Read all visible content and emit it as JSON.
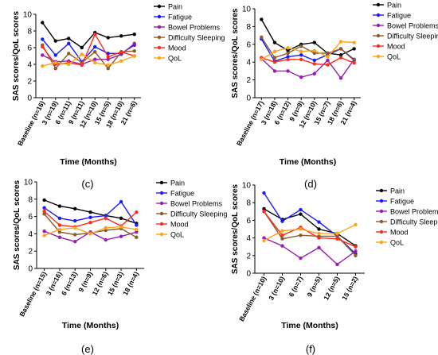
{
  "chart_data": [
    {
      "panel": "(c)",
      "type": "line",
      "xlabel": "Time (Months)",
      "ylabel": "SAS scores/QoL scores",
      "ylim": [
        0,
        10
      ],
      "yticks": [
        0,
        2,
        4,
        6,
        8,
        10
      ],
      "categories": [
        "Baseline (n=16)",
        "3 (n=19)",
        "6 (n=11)",
        "9 (n=11)",
        "12 (n=10)",
        "15 (n=5)",
        "18 (n=10)",
        "21 (n=6)"
      ],
      "legend": "top-right",
      "series": [
        {
          "name": "Pain",
          "color": "#000000",
          "values": [
            9.0,
            6.8,
            7.1,
            6.0,
            7.8,
            7.2,
            7.4,
            7.6
          ]
        },
        {
          "name": "Fatigue",
          "color": "#1a1aff",
          "values": [
            7.0,
            5.1,
            6.5,
            4.3,
            6.1,
            5.3,
            5.3,
            6.3
          ]
        },
        {
          "name": "Bowel Problems",
          "color": "#9b1bb1",
          "values": [
            5.1,
            4.3,
            4.4,
            4.0,
            4.6,
            4.6,
            5.2,
            6.5
          ]
        },
        {
          "name": "Difficulty Sleeping",
          "color": "#8b5a2b",
          "values": [
            6.3,
            3.5,
            5.3,
            4.2,
            5.5,
            3.5,
            5.5,
            5.6
          ]
        },
        {
          "name": "Mood",
          "color": "#ff2a1a",
          "values": [
            6.1,
            4.0,
            4.2,
            3.9,
            7.6,
            4.9,
            5.5,
            5.0
          ]
        },
        {
          "name": "QoL",
          "color": "#ffa31a",
          "values": [
            3.8,
            4.2,
            4.0,
            5.2,
            4.2,
            3.9,
            4.4,
            5.0
          ]
        }
      ]
    },
    {
      "panel": "(d)",
      "type": "line",
      "xlabel": "Time (Months)",
      "ylabel": "SAS scores/QoL scores",
      "ylim": [
        0,
        10
      ],
      "yticks": [
        0,
        2,
        4,
        6,
        8,
        10
      ],
      "categories": [
        "Baseline (n=17)",
        "3 (n=18)",
        "6 (n=12)",
        "9 (n=9)",
        "12 (n=10)",
        "15 (n=7)",
        "18 (n=6)",
        "21 (n=4)"
      ],
      "legend": "top-right",
      "series": [
        {
          "name": "Pain",
          "color": "#000000",
          "values": [
            8.8,
            6.2,
            5.3,
            6.0,
            6.2,
            5.0,
            4.8,
            5.5
          ]
        },
        {
          "name": "Fatigue",
          "color": "#1a1aff",
          "values": [
            6.6,
            4.1,
            4.6,
            4.8,
            4.2,
            4.8,
            5.5,
            4.2
          ]
        },
        {
          "name": "Bowel Problems",
          "color": "#9b1bb1",
          "values": [
            4.4,
            3.0,
            3.0,
            2.3,
            2.7,
            4.2,
            2.2,
            4.3
          ]
        },
        {
          "name": "Difficulty Sleeping",
          "color": "#8b5a2b",
          "values": [
            6.8,
            4.5,
            5.0,
            5.8,
            5.0,
            5.0,
            5.5,
            4.3
          ]
        },
        {
          "name": "Mood",
          "color": "#ff2a1a",
          "values": [
            4.5,
            4.0,
            4.3,
            4.3,
            3.8,
            3.7,
            4.5,
            3.9
          ]
        },
        {
          "name": "QoL",
          "color": "#ffa31a",
          "values": [
            4.3,
            5.2,
            5.6,
            5.2,
            5.3,
            4.6,
            6.3,
            6.2
          ]
        }
      ]
    },
    {
      "panel": "(e)",
      "type": "line",
      "xlabel": "Time (Months)",
      "ylabel": "SAS scores/QoL scores",
      "ylim": [
        0,
        10
      ],
      "yticks": [
        0,
        2,
        4,
        6,
        8,
        10
      ],
      "categories": [
        "Baseline (n=15)",
        "3 (n=16)",
        "6 (n=13)",
        "9 (n=9)",
        "12 (n=6)",
        "15 (n=3)",
        "18 (n=4)"
      ],
      "legend": "top-right",
      "series": [
        {
          "name": "Pain",
          "color": "#000000",
          "values": [
            7.9,
            7.2,
            6.9,
            6.5,
            6.1,
            5.8,
            5.2
          ]
        },
        {
          "name": "Fatigue",
          "color": "#1a1aff",
          "values": [
            7.0,
            5.8,
            5.5,
            5.9,
            6.1,
            7.7,
            5.0
          ]
        },
        {
          "name": "Bowel Problems",
          "color": "#9b1bb1",
          "values": [
            4.3,
            3.6,
            3.1,
            4.2,
            3.3,
            3.7,
            4.2
          ]
        },
        {
          "name": "Difficulty Sleeping",
          "color": "#8b5a2b",
          "values": [
            6.3,
            4.2,
            3.9,
            4.1,
            4.4,
            4.6,
            3.6
          ]
        },
        {
          "name": "Mood",
          "color": "#ff2a1a",
          "values": [
            6.6,
            5.0,
            4.8,
            5.3,
            5.8,
            4.9,
            6.5
          ]
        },
        {
          "name": "QoL",
          "color": "#ffa31a",
          "values": [
            3.8,
            4.5,
            4.7,
            4.0,
            4.7,
            4.8,
            4.5
          ]
        }
      ]
    },
    {
      "panel": "(f)",
      "type": "line",
      "xlabel": "Time (Months)",
      "ylabel": "SAS scores/QoL scores",
      "ylim": [
        0,
        10
      ],
      "yticks": [
        0,
        2,
        4,
        6,
        8,
        10
      ],
      "categories": [
        "Baseline (n=10)",
        "3 (n=10)",
        "6 (n=7)",
        "9 (n=5)",
        "12 (n=5)",
        "15 (n=2)"
      ],
      "legend": "top-right",
      "series": [
        {
          "name": "Pain",
          "color": "#000000",
          "values": [
            7.3,
            6.1,
            6.7,
            5.0,
            4.5,
            3.1
          ]
        },
        {
          "name": "Fatigue",
          "color": "#1a1aff",
          "values": [
            9.1,
            5.9,
            7.2,
            5.8,
            4.2,
            2.2
          ]
        },
        {
          "name": "Bowel Problems",
          "color": "#9b1bb1",
          "values": [
            4.0,
            3.1,
            1.7,
            2.9,
            1.0,
            2.5
          ]
        },
        {
          "name": "Difficulty Sleeping",
          "color": "#8b5a2b",
          "values": [
            7.0,
            3.9,
            4.3,
            4.2,
            4.2,
            2.0
          ]
        },
        {
          "name": "Mood",
          "color": "#ff2a1a",
          "values": [
            7.0,
            4.3,
            5.2,
            4.0,
            3.9,
            3.0
          ]
        },
        {
          "name": "QoL",
          "color": "#ffa31a",
          "values": [
            3.7,
            4.8,
            5.0,
            4.5,
            4.5,
            5.5
          ]
        }
      ]
    }
  ]
}
